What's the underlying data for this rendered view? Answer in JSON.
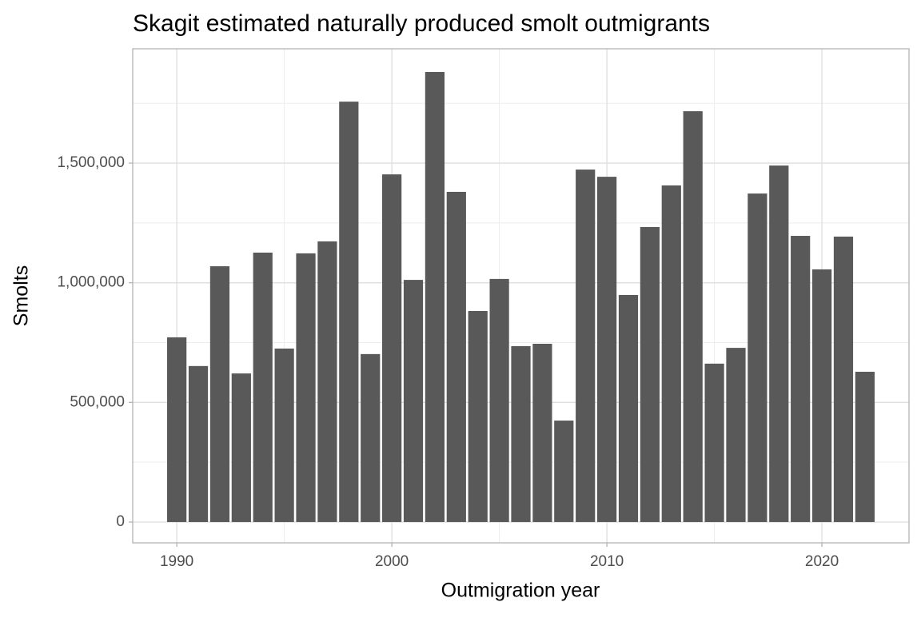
{
  "chart_data": {
    "type": "bar",
    "title": "Skagit estimated naturally produced smolt outmigrants",
    "x_label": "Outmigration year",
    "y_label": "Smolts",
    "x": [
      1990,
      1991,
      1992,
      1993,
      1994,
      1995,
      1996,
      1997,
      1998,
      1999,
      2000,
      2001,
      2002,
      2003,
      2004,
      2005,
      2006,
      2007,
      2008,
      2009,
      2010,
      2011,
      2012,
      2013,
      2014,
      2015,
      2016,
      2017,
      2018,
      2019,
      2020,
      2021,
      2022
    ],
    "values": [
      772000,
      652000,
      1069000,
      621000,
      1126000,
      725000,
      1123000,
      1173000,
      1757000,
      702000,
      1453000,
      1012000,
      1881000,
      1380000,
      882000,
      1016000,
      735000,
      745000,
      424000,
      1473000,
      1443000,
      949000,
      1233000,
      1407000,
      1717000,
      662000,
      728000,
      1373000,
      1490000,
      1196000,
      1056000,
      1193000,
      628000
    ],
    "color": "#595959",
    "xlim": [
      1987.95,
      2024.05
    ],
    "ylim": [
      -87000,
      1978000
    ],
    "xticks": [
      1990,
      2000,
      2010,
      2020
    ],
    "yticks": [
      0,
      {
        "value": 500000,
        "label": "500,000"
      },
      {
        "value": 1000000,
        "label": "1,000,000"
      },
      {
        "value": 1500000,
        "label": "1,500,000"
      }
    ],
    "grid": true
  }
}
